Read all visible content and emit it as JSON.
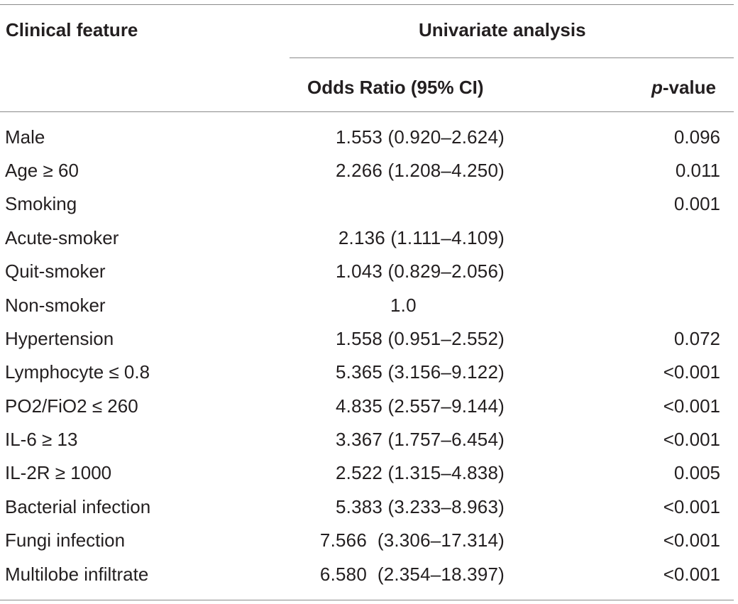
{
  "table": {
    "headers": {
      "feature": "Clinical feature",
      "group": "Univariate analysis",
      "odds_ratio": "Odds Ratio (95% CI)",
      "p_value_italic": "p",
      "p_value_rest": "-value"
    },
    "rows": [
      {
        "feature": "Male",
        "or": "1.553 (0.920–2.624)",
        "p": "0.096"
      },
      {
        "feature": "Age ≥ 60",
        "or": "2.266 (1.208–4.250)",
        "p": "0.011"
      },
      {
        "feature": "Smoking",
        "or": "",
        "p": "0.001"
      },
      {
        "feature": "Acute-smoker",
        "or": "2.136 (1.111–4.109)",
        "p": ""
      },
      {
        "feature": "Quit-smoker",
        "or": "1.043 (0.829–2.056)",
        "p": ""
      },
      {
        "feature": "Non-smoker",
        "or": "1.0",
        "p": ""
      },
      {
        "feature": "Hypertension",
        "or": "1.558 (0.951–2.552)",
        "p": "0.072"
      },
      {
        "feature": "Lymphocyte ≤ 0.8",
        "or": "5.365 (3.156–9.122)",
        "p": "<0.001"
      },
      {
        "feature": "PO2/FiO2 ≤ 260",
        "or": "4.835 (2.557–9.144)",
        "p": "<0.001"
      },
      {
        "feature": "IL-6 ≥ 13",
        "or": "3.367 (1.757–6.454)",
        "p": "<0.001"
      },
      {
        "feature": "IL-2R ≥ 1000",
        "or": "2.522 (1.315–4.838)",
        "p": "0.005"
      },
      {
        "feature": "Bacterial infection",
        "or": "5.383 (3.233–8.963)",
        "p": "<0.001"
      },
      {
        "feature": "Fungi infection",
        "or": "7.566  (3.306–17.314)",
        "p": "<0.001"
      },
      {
        "feature": "Multilobe infiltrate",
        "or": "6.580  (2.354–18.397)",
        "p": "<0.001"
      }
    ]
  }
}
